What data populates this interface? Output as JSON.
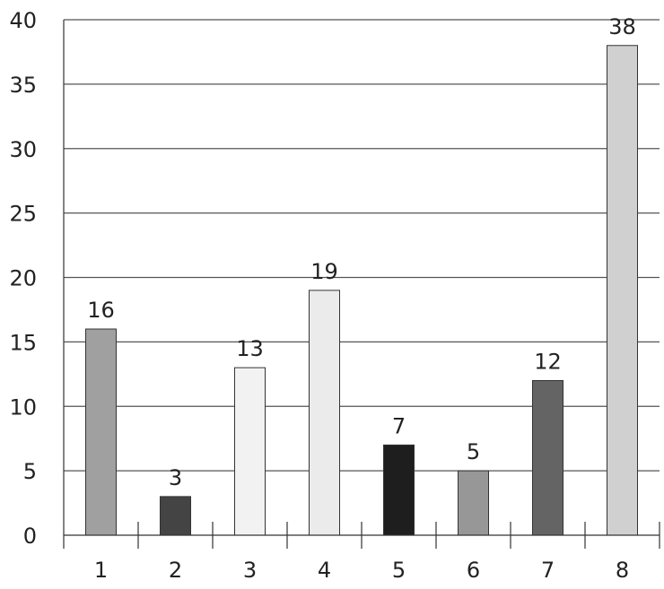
{
  "chart_data": {
    "type": "bar",
    "title": "",
    "xlabel": "",
    "ylabel": "",
    "categories": [
      "1",
      "2",
      "3",
      "4",
      "5",
      "6",
      "7",
      "8"
    ],
    "values": [
      16,
      3,
      13,
      19,
      7,
      5,
      12,
      38
    ],
    "data_labels": [
      "16",
      "3",
      "13",
      "19",
      "7",
      "5",
      "12",
      "38"
    ],
    "bar_colors": [
      "#a0a0a0",
      "#444444",
      "#f2f2f2",
      "#ebebeb",
      "#1e1e1e",
      "#979797",
      "#646464",
      "#d0d0d0"
    ],
    "ylim": [
      0,
      40
    ],
    "yticks": [
      "0",
      "5",
      "10",
      "15",
      "20",
      "25",
      "30",
      "35",
      "40"
    ],
    "grid": true,
    "legend": "none"
  }
}
